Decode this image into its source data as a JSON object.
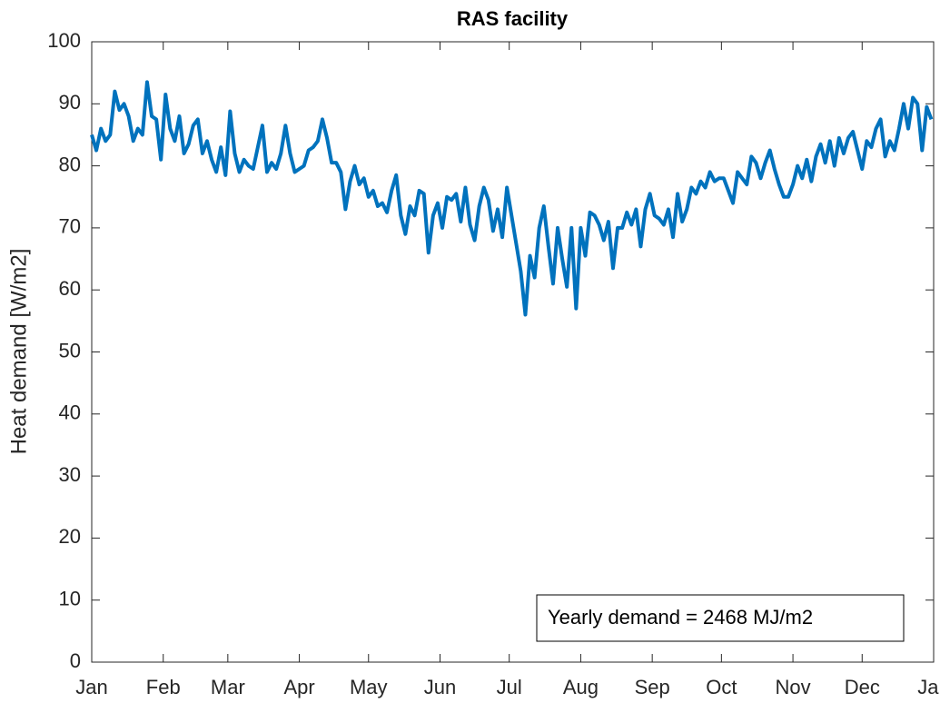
{
  "chart_data": {
    "type": "line",
    "title": "RAS facility",
    "ylabel": "Heat demand [W/m2]",
    "annotation": "Yearly demand = 2468 MJ/m2",
    "xlim": [
      0,
      365
    ],
    "ylim": [
      0,
      100
    ],
    "xticks": [
      {
        "value": 0,
        "label": "Jan"
      },
      {
        "value": 31,
        "label": "Feb"
      },
      {
        "value": 59,
        "label": "Mar"
      },
      {
        "value": 90,
        "label": "Apr"
      },
      {
        "value": 120,
        "label": "May"
      },
      {
        "value": 151,
        "label": "Jun"
      },
      {
        "value": 181,
        "label": "Jul"
      },
      {
        "value": 212,
        "label": "Aug"
      },
      {
        "value": 243,
        "label": "Sep"
      },
      {
        "value": 273,
        "label": "Oct"
      },
      {
        "value": 304,
        "label": "Nov"
      },
      {
        "value": 334,
        "label": "Dec"
      },
      {
        "value": 365,
        "label": "Jan"
      }
    ],
    "yticks": [
      0,
      10,
      20,
      30,
      40,
      50,
      60,
      70,
      80,
      90,
      100
    ],
    "x": [
      0,
      2,
      4,
      6,
      8,
      10,
      12,
      14,
      16,
      18,
      20,
      22,
      24,
      26,
      28,
      30,
      32,
      34,
      36,
      38,
      40,
      42,
      44,
      46,
      48,
      50,
      52,
      54,
      56,
      58,
      60,
      62,
      64,
      66,
      68,
      70,
      72,
      74,
      76,
      78,
      80,
      82,
      84,
      86,
      88,
      90,
      92,
      94,
      96,
      98,
      100,
      102,
      104,
      106,
      108,
      110,
      112,
      114,
      116,
      118,
      120,
      122,
      124,
      126,
      128,
      130,
      132,
      134,
      136,
      138,
      140,
      142,
      144,
      146,
      148,
      150,
      152,
      154,
      156,
      158,
      160,
      162,
      164,
      166,
      168,
      170,
      172,
      174,
      176,
      178,
      180,
      182,
      184,
      186,
      188,
      190,
      192,
      194,
      196,
      198,
      200,
      202,
      204,
      206,
      208,
      210,
      212,
      214,
      216,
      218,
      220,
      222,
      224,
      226,
      228,
      230,
      232,
      234,
      236,
      238,
      240,
      242,
      244,
      246,
      248,
      250,
      252,
      254,
      256,
      258,
      260,
      262,
      264,
      266,
      268,
      270,
      272,
      274,
      276,
      278,
      280,
      282,
      284,
      286,
      288,
      290,
      292,
      294,
      296,
      298,
      300,
      302,
      304,
      306,
      308,
      310,
      312,
      314,
      316,
      318,
      320,
      322,
      324,
      326,
      328,
      330,
      332,
      334,
      336,
      338,
      340,
      342,
      344,
      346,
      348,
      350,
      352,
      354,
      356,
      358,
      360,
      362,
      364
    ],
    "series": [
      {
        "name": "Heat demand",
        "color": "#0072bd",
        "values": [
          85,
          82.5,
          86,
          84,
          85,
          92,
          89,
          90,
          88,
          84,
          86,
          85,
          93.5,
          88,
          87.5,
          81,
          91.5,
          86,
          84,
          88,
          82,
          83.5,
          86.5,
          87.5,
          82,
          84,
          81,
          79,
          83,
          78.5,
          88.8,
          82,
          79,
          81,
          80,
          79.5,
          83,
          86.5,
          79,
          80.5,
          79.5,
          82,
          86.5,
          82,
          79,
          79.5,
          80,
          82.5,
          83,
          84,
          87.5,
          84.5,
          80.5,
          80.5,
          79,
          73,
          77.5,
          80,
          77,
          78,
          75,
          76,
          73.5,
          74,
          72.5,
          76,
          78.5,
          72,
          69,
          73.5,
          72,
          76,
          75.5,
          66,
          72,
          74,
          70,
          75,
          74.5,
          75.5,
          71,
          76.5,
          70.5,
          68,
          73.5,
          76.5,
          74.5,
          69.5,
          73,
          68.5,
          76.5,
          72,
          67.5,
          63,
          56,
          65.5,
          62,
          70,
          73.5,
          67,
          61,
          70,
          65,
          60.5,
          70,
          57,
          70,
          65.5,
          72.5,
          72,
          70.5,
          68,
          71,
          63.5,
          70,
          70,
          72.5,
          70.5,
          73,
          67,
          73,
          75.5,
          72,
          71.5,
          70.5,
          73,
          68.5,
          75.5,
          71,
          73,
          76.5,
          75.5,
          77.5,
          76.5,
          79,
          77.5,
          78,
          78,
          76,
          74,
          79,
          78,
          77,
          81.5,
          80.5,
          78,
          80.5,
          82.5,
          79.5,
          77,
          75,
          75,
          77,
          80,
          78,
          81,
          77.5,
          81.5,
          83.5,
          80.5,
          84,
          80,
          84.5,
          82,
          84.5,
          85.5,
          82.5,
          79.5,
          84,
          83,
          86,
          87.5,
          81.5,
          84,
          82.5,
          86,
          90,
          86,
          91,
          90,
          82.5,
          89.5,
          87.5
        ]
      }
    ]
  }
}
